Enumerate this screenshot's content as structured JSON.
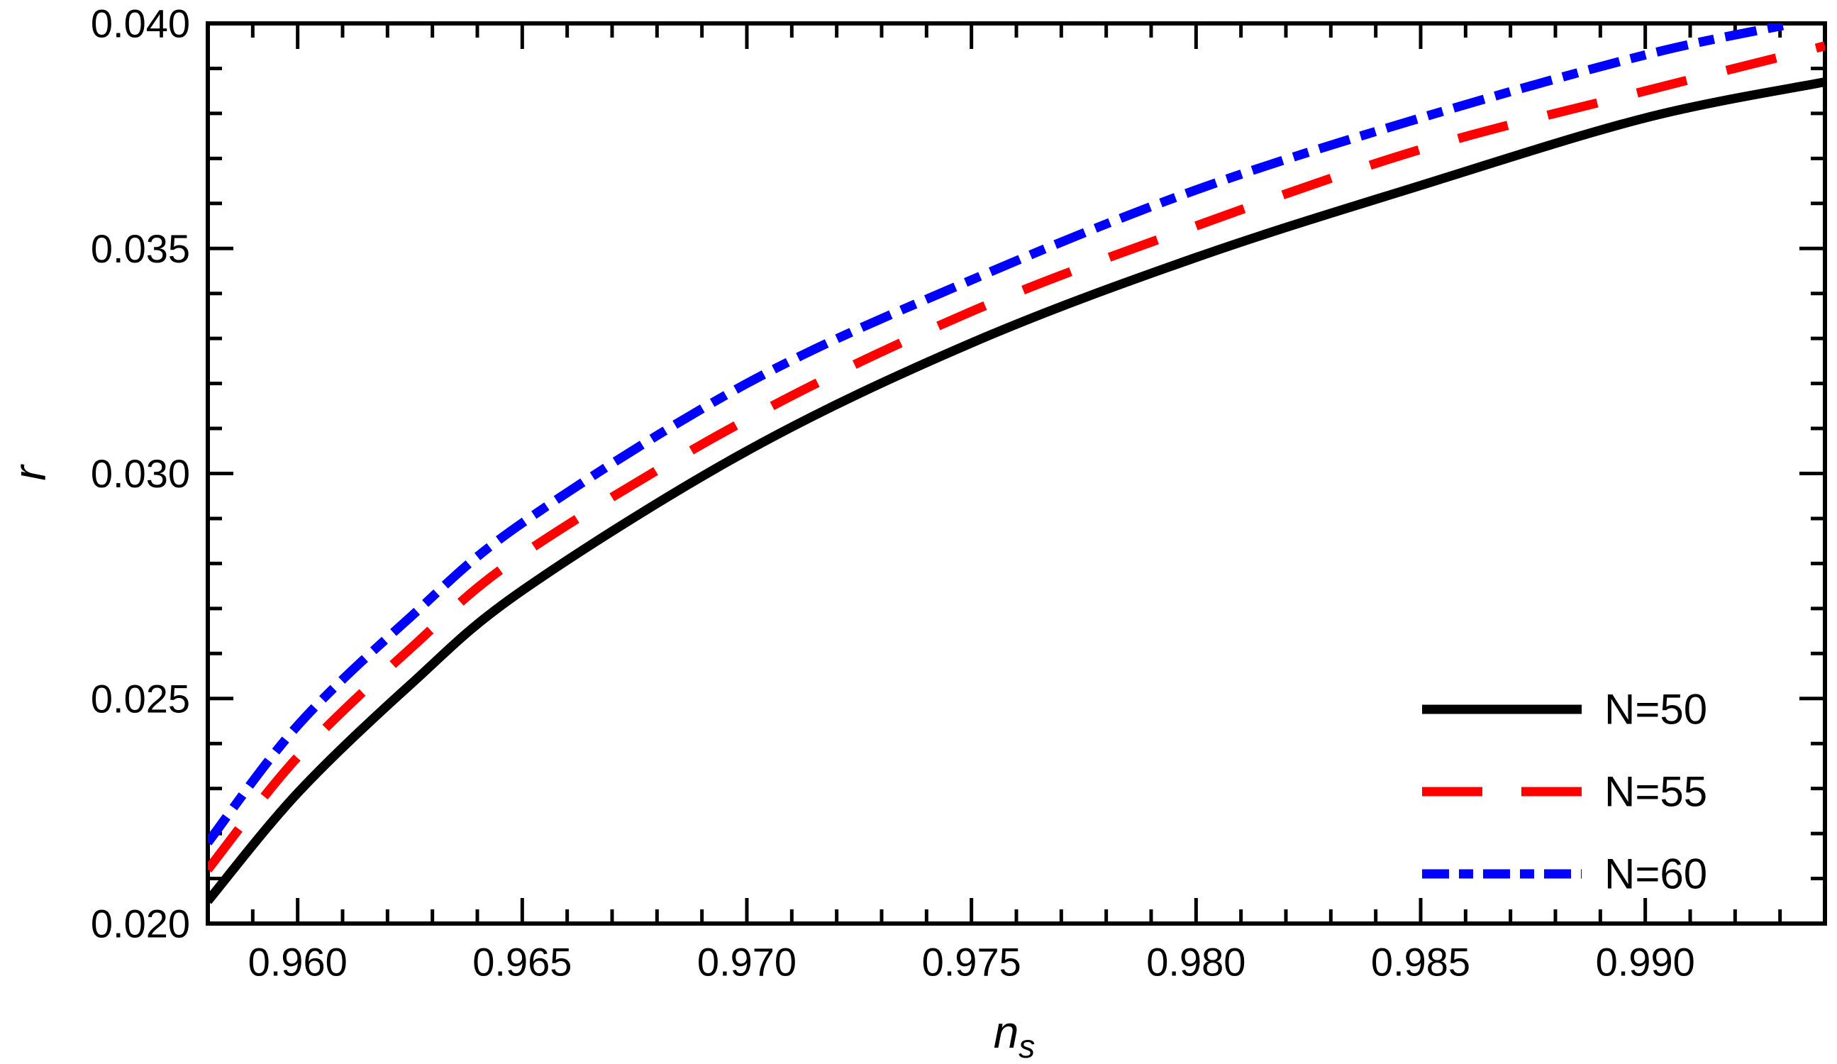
{
  "figure": {
    "background_color": "#ffffff",
    "frame_color": "#000000"
  },
  "labels": {
    "y_label": "r",
    "x_label_main": "n",
    "x_label_sub": "s"
  },
  "chart_data": {
    "type": "line",
    "title": "",
    "xlabel": "n_s",
    "ylabel": "r",
    "xlim": [
      0.958,
      0.994
    ],
    "ylim": [
      0.02,
      0.04
    ],
    "grid": false,
    "frame": true,
    "legend_position": "bottom-right inside",
    "x_major_ticks": [
      0.96,
      0.965,
      0.97,
      0.975,
      0.98,
      0.985,
      0.99
    ],
    "x_tick_labels": [
      "0.960",
      "0.965",
      "0.970",
      "0.975",
      "0.980",
      "0.985",
      "0.990"
    ],
    "y_major_ticks": [
      0.02,
      0.025,
      0.03,
      0.035,
      0.04
    ],
    "y_tick_labels": [
      "0.020",
      "0.025",
      "0.030",
      "0.035",
      "0.040"
    ],
    "minor_tick_step": 0.001,
    "series": [
      {
        "name": "N=50",
        "color": "#000000",
        "style": "solid",
        "x": [
          0.958,
          0.96,
          0.9625,
          0.965,
          0.97,
          0.975,
          0.98,
          0.985,
          0.99,
          0.994
        ],
        "y": [
          0.0205,
          0.0229,
          0.0253,
          0.0274,
          0.0305,
          0.0329,
          0.0348,
          0.0364,
          0.0379,
          0.0387
        ]
      },
      {
        "name": "N=55",
        "color": "#ff0000",
        "style": "dashed",
        "x": [
          0.958,
          0.96,
          0.9625,
          0.965,
          0.97,
          0.975,
          0.98,
          0.985,
          0.99,
          0.994
        ],
        "y": [
          0.0212,
          0.0237,
          0.0261,
          0.0282,
          0.0312,
          0.0336,
          0.0355,
          0.0372,
          0.0385,
          0.0395
        ]
      },
      {
        "name": "N=60",
        "color": "#0000ff",
        "style": "dash-dot",
        "x": [
          0.958,
          0.96,
          0.9625,
          0.965,
          0.97,
          0.975,
          0.98,
          0.985,
          0.99,
          0.9933
        ],
        "y": [
          0.0218,
          0.0244,
          0.0268,
          0.0289,
          0.032,
          0.0343,
          0.0363,
          0.0379,
          0.0393,
          0.04
        ]
      }
    ],
    "legend_entries": [
      "N=50",
      "N=55",
      "N=60"
    ]
  }
}
